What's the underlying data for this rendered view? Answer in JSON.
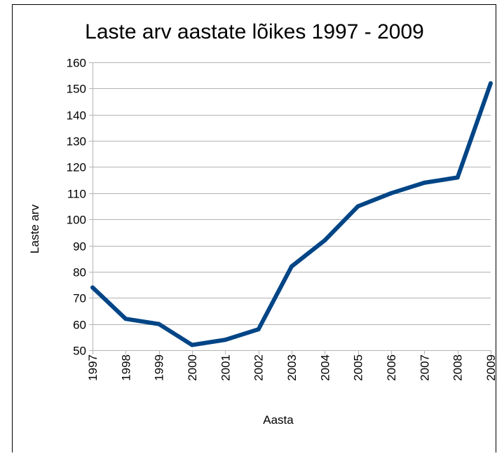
{
  "chart_data": {
    "type": "line",
    "title": "Laste arv aastate lõikes 1997 - 2009",
    "xlabel": "Aasta",
    "ylabel": "Laste arv",
    "categories": [
      "1997",
      "1998",
      "1999",
      "2000",
      "2001",
      "2002",
      "2003",
      "2004",
      "2005",
      "2006",
      "2007",
      "2008",
      "2009"
    ],
    "series": [
      {
        "values": [
          74,
          62,
          60,
          52,
          54,
          58,
          82,
          92,
          105,
          110,
          114,
          116,
          152
        ],
        "color": "#004586"
      }
    ],
    "ylim": [
      50,
      160
    ],
    "yticks": [
      50,
      60,
      70,
      80,
      90,
      100,
      110,
      120,
      130,
      140,
      150,
      160
    ],
    "grid": true,
    "legend": "none"
  }
}
